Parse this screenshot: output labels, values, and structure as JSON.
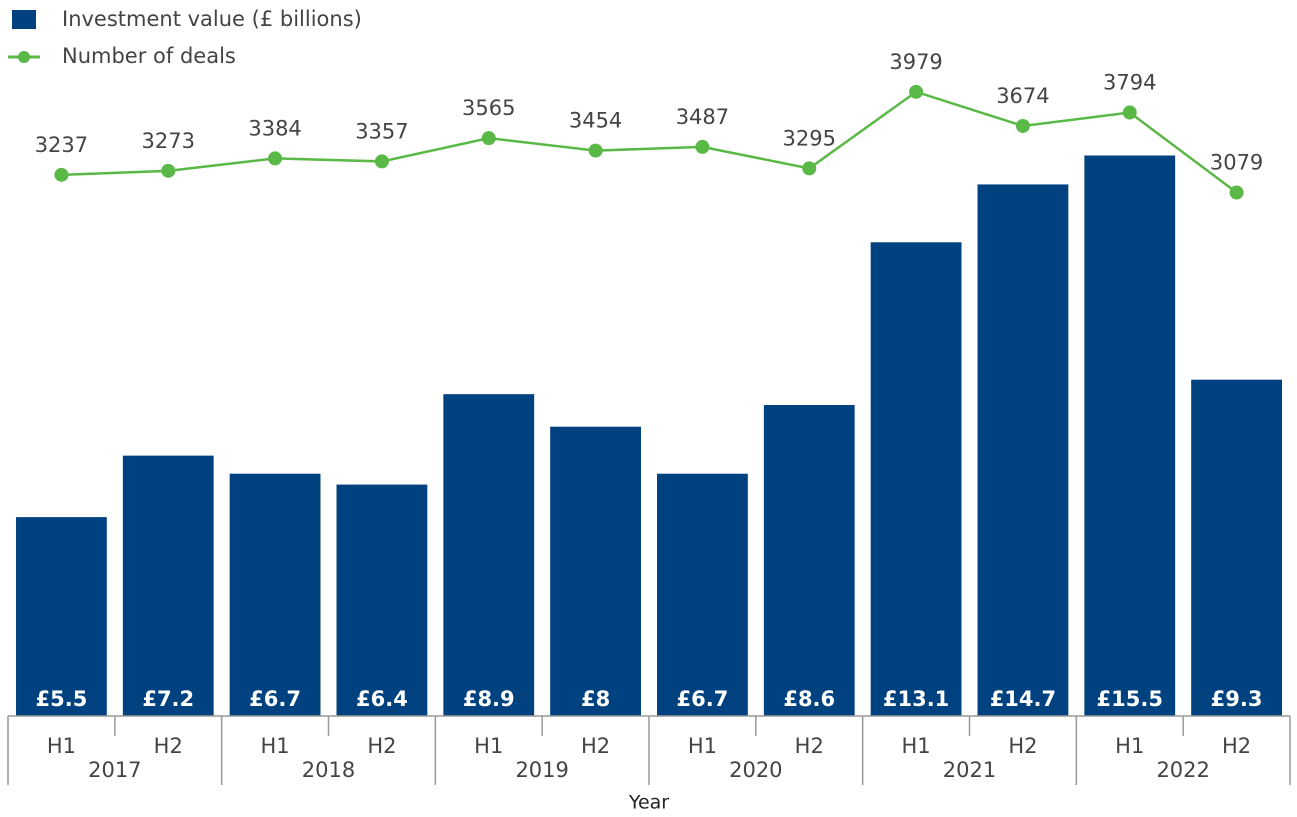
{
  "chart_data": {
    "type": "bar",
    "legend": "top-left",
    "xlabel": "Year",
    "categories": [
      "H1",
      "H2",
      "H1",
      "H2",
      "H1",
      "H2",
      "H1",
      "H2",
      "H1",
      "H2",
      "H1",
      "H2"
    ],
    "groups": [
      "2017",
      "2018",
      "2019",
      "2020",
      "2021",
      "2022"
    ],
    "series": [
      {
        "name": "Investment value (£ billions)",
        "type": "bar",
        "color": "#00427f",
        "values": [
          5.5,
          7.2,
          6.7,
          6.4,
          8.9,
          8,
          6.7,
          8.6,
          13.1,
          14.7,
          15.5,
          9.3
        ],
        "value_labels": [
          "£5.5",
          "£7.2",
          "£6.7",
          "£6.4",
          "£8.9",
          "£8",
          "£6.7",
          "£8.6",
          "£13.1",
          "£14.7",
          "£15.5",
          "£9.3"
        ]
      },
      {
        "name": "Number of deals",
        "type": "line",
        "axis": "y2",
        "color": "#5ab946",
        "values": [
          3237,
          3273,
          3384,
          3357,
          3565,
          3454,
          3487,
          3295,
          3979,
          3674,
          3794,
          3079
        ]
      }
    ],
    "ylim": [
      0,
      19.8
    ],
    "y2lim": [
      -1600,
      4800
    ]
  }
}
